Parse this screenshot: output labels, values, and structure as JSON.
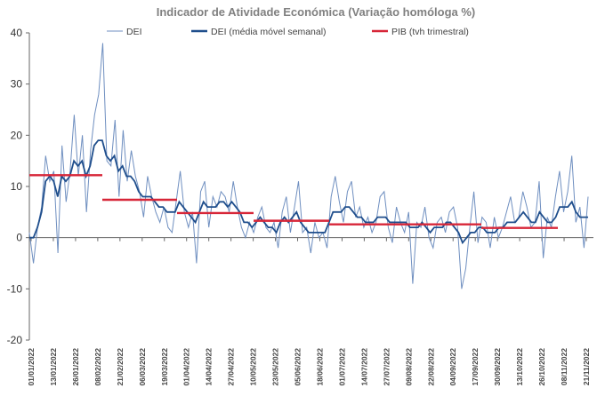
{
  "chart_data": {
    "type": "line",
    "title": "Indicador de Atividade Económica (Variação homóloga %)",
    "xlabel": "",
    "ylabel": "",
    "ylim": [
      -20,
      40
    ],
    "yticks": [
      -20,
      -10,
      0,
      10,
      20,
      30,
      40
    ],
    "legend_position": "top",
    "grid": false,
    "x_tick_labels": [
      "01/01/2022",
      "13/01/2022",
      "26/01/2022",
      "08/02/2022",
      "21/02/2022",
      "06/03/2022",
      "19/03/2022",
      "01/04/2022",
      "14/04/2022",
      "27/04/2022",
      "10/05/2022",
      "23/05/2022",
      "05/06/2022",
      "18/06/2022",
      "01/07/2022",
      "14/07/2022",
      "27/07/2022",
      "09/08/2022",
      "22/08/2022",
      "04/09/2022",
      "17/09/2022",
      "30/09/2022",
      "13/10/2022",
      "26/10/2022",
      "08/11/2022",
      "21/11/2022"
    ],
    "series": [
      {
        "name": "DEI",
        "style": "thin-line",
        "color": "#6f8fc0",
        "values": [
          1,
          -5,
          2,
          6,
          16,
          11,
          13,
          -3,
          18,
          7,
          13,
          24,
          12,
          20,
          5,
          17,
          24,
          28,
          38,
          15,
          14,
          23,
          8,
          21,
          11,
          17,
          12,
          9,
          4,
          12,
          8,
          5,
          3,
          6,
          2,
          1,
          7,
          13,
          5,
          2,
          5,
          -5,
          9,
          11,
          2,
          8,
          6,
          9,
          8,
          5,
          11,
          6,
          2,
          0,
          3,
          1,
          4,
          6,
          2,
          1,
          3,
          -2,
          5,
          8,
          1,
          6,
          11,
          1,
          2,
          -3,
          3,
          0,
          1,
          -2,
          8,
          12,
          7,
          3,
          9,
          11,
          4,
          6,
          2,
          4,
          1,
          3,
          8,
          9,
          2,
          -1,
          6,
          3,
          1,
          5,
          -9,
          3,
          2,
          6,
          0,
          -2,
          3,
          4,
          1,
          5,
          6,
          2,
          -10,
          -6,
          2,
          9,
          -1,
          4,
          3,
          -2,
          4,
          0,
          2,
          5,
          8,
          3,
          4,
          9,
          6,
          2,
          3,
          11,
          -4,
          4,
          2,
          8,
          13,
          5,
          9,
          16,
          3,
          6,
          -2,
          8
        ]
      },
      {
        "name": "DEI (média móvel semanal)",
        "style": "thick-line",
        "color": "#1f4e8c",
        "values": [
          0,
          0,
          2,
          5,
          11,
          12,
          11,
          8,
          12,
          11,
          12,
          15,
          14,
          15,
          12,
          14,
          18,
          19,
          19,
          16,
          15,
          16,
          13,
          14,
          12,
          12,
          11,
          9,
          8,
          8,
          8,
          7,
          6,
          6,
          5,
          5,
          5,
          7,
          6,
          5,
          4,
          3,
          5,
          7,
          6,
          6,
          6,
          7,
          7,
          6,
          7,
          6,
          5,
          3,
          3,
          2,
          3,
          4,
          3,
          2,
          2,
          1,
          3,
          4,
          3,
          4,
          5,
          3,
          2,
          1,
          1,
          1,
          1,
          1,
          3,
          5,
          5,
          5,
          6,
          6,
          5,
          4,
          4,
          3,
          3,
          3,
          4,
          4,
          4,
          3,
          3,
          3,
          3,
          3,
          2,
          2,
          2,
          3,
          2,
          1,
          2,
          2,
          2,
          3,
          3,
          2,
          1,
          -1,
          0,
          1,
          1,
          2,
          2,
          1,
          1,
          1,
          2,
          2,
          3,
          3,
          3,
          4,
          5,
          4,
          3,
          3,
          5,
          4,
          3,
          3,
          4,
          6,
          6,
          6,
          7,
          5,
          4,
          4,
          4
        ]
      },
      {
        "name": "PIB (tvh trimestral)",
        "style": "step",
        "color": "#d72638",
        "segments": [
          {
            "x_from": 0,
            "x_to": 82,
            "value": 12.2
          },
          {
            "x_from": 82,
            "x_to": 166,
            "value": 7.4
          },
          {
            "x_from": 166,
            "x_to": 252,
            "value": 4.8
          },
          {
            "x_from": 252,
            "x_to": 337,
            "value": 3.3
          },
          {
            "x_from": 337,
            "x_to": 508,
            "value": 2.6
          },
          {
            "x_from": 508,
            "x_to": 594,
            "value": 1.9
          }
        ]
      }
    ]
  }
}
